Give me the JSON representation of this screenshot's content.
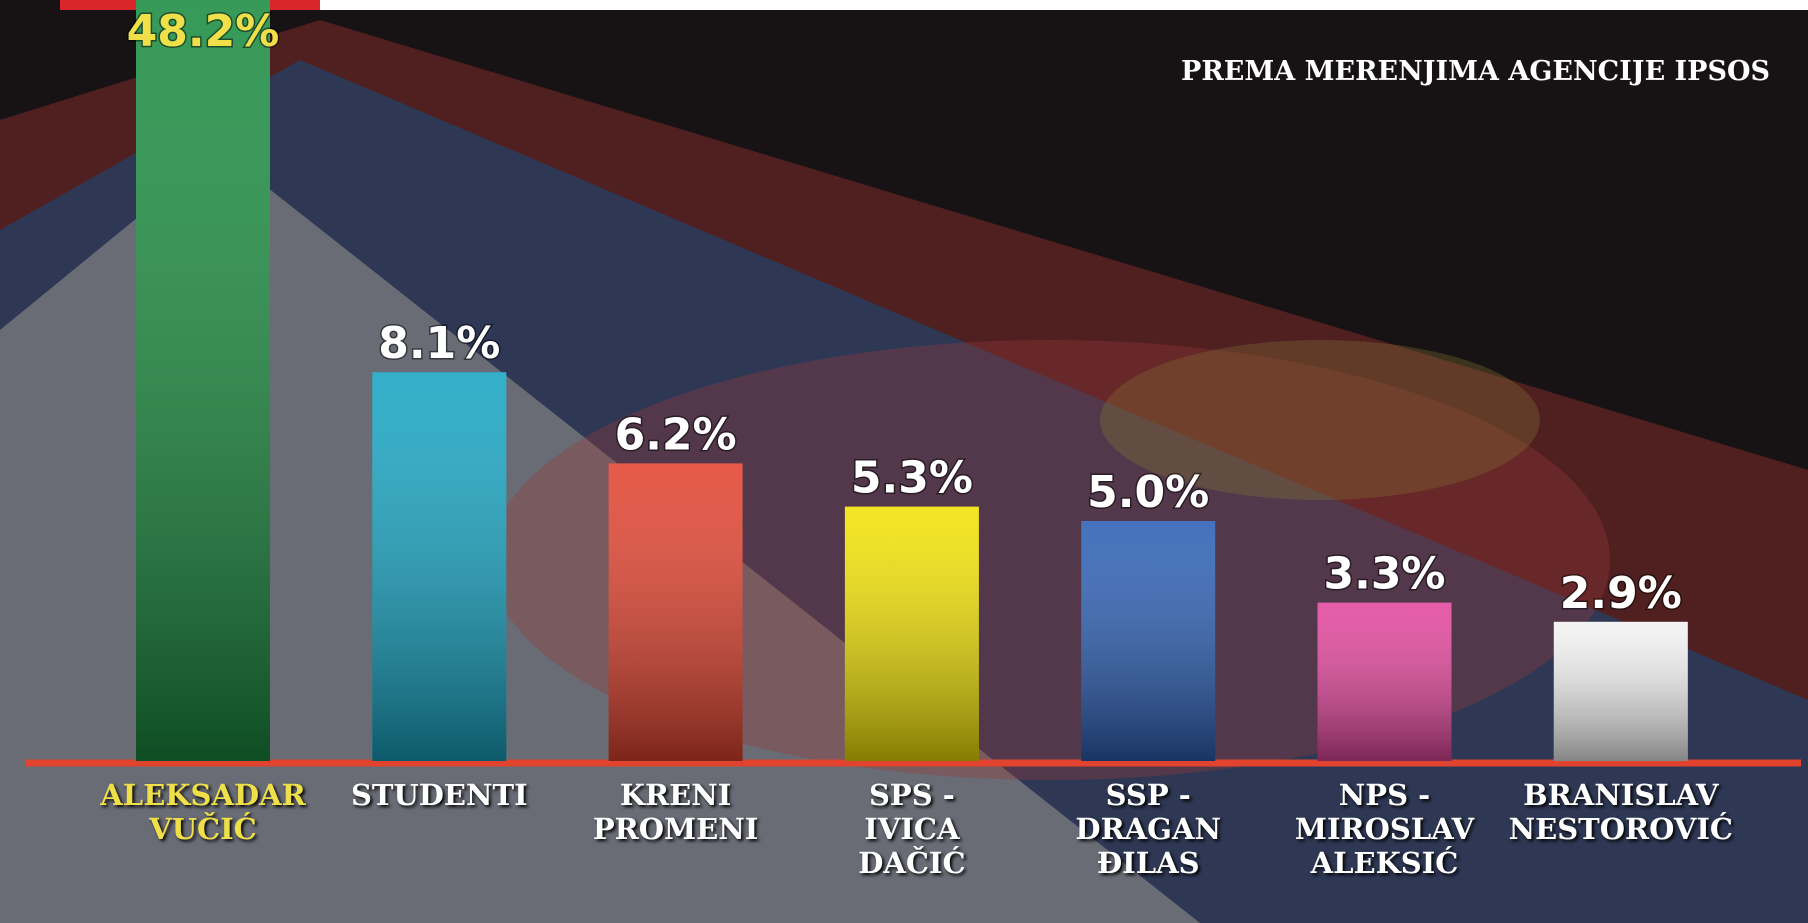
{
  "chart_data": {
    "type": "bar",
    "subtitle": "PREMA MERENJIMA AGENCIJE IPSOS",
    "categories": [
      "ALEKSADAR\nVUČIĆ",
      "STUDENTI",
      "KRENI\nPROMENI",
      "SPS -\nIVICA\nDAČIĆ",
      "SSP -\nDRAGAN\nĐILAS",
      "NPS -\nMIROSLAV\nALEKSIĆ",
      "BRANISLAV\nNESTOROVIĆ"
    ],
    "values": [
      48.2,
      8.1,
      6.2,
      5.3,
      5.0,
      3.3,
      2.9
    ],
    "value_labels": [
      "48.2%",
      "8.1%",
      "6.2%",
      "5.3%",
      "5.0%",
      "3.3%",
      "2.9%"
    ],
    "colors": [
      "#1b8c40",
      "#17a4c2",
      "#e2432f",
      "#f2e205",
      "#2c5fb4",
      "#e2469c",
      "#f2f2f2"
    ],
    "highlight_color": "#efe04a"
  }
}
